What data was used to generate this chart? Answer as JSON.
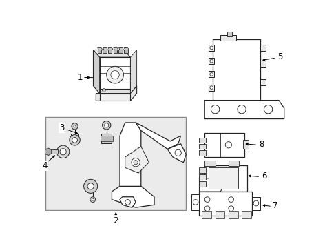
{
  "fig_bg": "#ffffff",
  "lw": 0.8,
  "parts_lc": "#222222",
  "box_bg": "#ebebeb",
  "label_fs": 8.5
}
